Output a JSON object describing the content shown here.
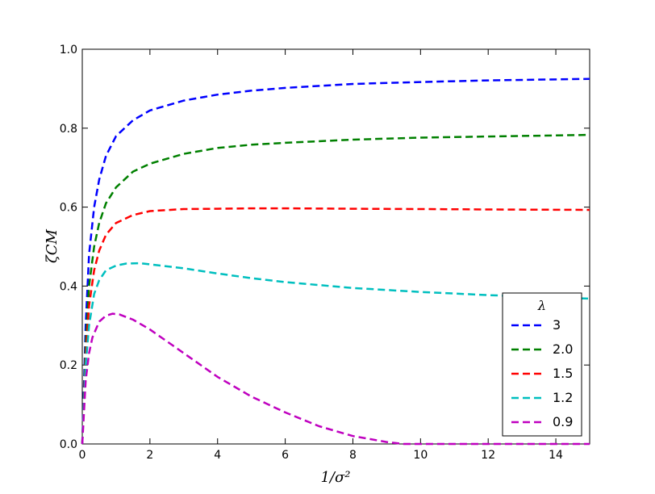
{
  "chart_data": {
    "type": "line",
    "xlabel": "1/σ²",
    "ylabel": "ζCM",
    "xlim": [
      0,
      15
    ],
    "ylim": [
      0,
      1.0
    ],
    "x_ticks": [
      "0",
      "2",
      "4",
      "6",
      "8",
      "10",
      "12",
      "14"
    ],
    "y_ticks": [
      "0.0",
      "0.2",
      "0.4",
      "0.6",
      "0.8",
      "1.0"
    ],
    "grid": false,
    "legend": {
      "title": "λ",
      "placement": "lower-right"
    },
    "series": [
      {
        "name": "3",
        "color": "#0000ff",
        "x": [
          0,
          0.1,
          0.2,
          0.35,
          0.5,
          0.7,
          1.0,
          1.5,
          2,
          3,
          4,
          5,
          6,
          8,
          10,
          12,
          15
        ],
        "y": [
          0.0,
          0.3,
          0.48,
          0.6,
          0.67,
          0.73,
          0.78,
          0.82,
          0.845,
          0.87,
          0.885,
          0.895,
          0.902,
          0.912,
          0.917,
          0.921,
          0.925
        ]
      },
      {
        "name": "2.0",
        "color": "#008000",
        "x": [
          0,
          0.1,
          0.2,
          0.35,
          0.5,
          0.7,
          1.0,
          1.5,
          2,
          3,
          4,
          5,
          6,
          8,
          10,
          12,
          15
        ],
        "y": [
          0.0,
          0.25,
          0.4,
          0.5,
          0.56,
          0.61,
          0.65,
          0.69,
          0.71,
          0.735,
          0.75,
          0.758,
          0.763,
          0.771,
          0.776,
          0.779,
          0.783
        ]
      },
      {
        "name": "1.5",
        "color": "#ff0000",
        "x": [
          0,
          0.1,
          0.2,
          0.35,
          0.5,
          0.7,
          1.0,
          1.5,
          2,
          3,
          4,
          5,
          6,
          8,
          10,
          12,
          15
        ],
        "y": [
          0.0,
          0.22,
          0.35,
          0.44,
          0.49,
          0.53,
          0.56,
          0.58,
          0.59,
          0.595,
          0.596,
          0.597,
          0.597,
          0.596,
          0.595,
          0.594,
          0.593
        ]
      },
      {
        "name": "1.2",
        "color": "#00bfbf",
        "x": [
          0,
          0.1,
          0.2,
          0.35,
          0.5,
          0.7,
          1.0,
          1.3,
          1.7,
          2,
          3,
          4,
          5,
          6,
          8,
          10,
          12,
          15
        ],
        "y": [
          0.0,
          0.2,
          0.3,
          0.38,
          0.415,
          0.44,
          0.452,
          0.457,
          0.458,
          0.455,
          0.445,
          0.432,
          0.42,
          0.41,
          0.395,
          0.385,
          0.377,
          0.368
        ]
      },
      {
        "name": "0.9",
        "color": "#bf00bf",
        "x": [
          0,
          0.1,
          0.2,
          0.3,
          0.5,
          0.7,
          0.9,
          1.1,
          1.5,
          2,
          3,
          4,
          5,
          6,
          7,
          8,
          9,
          9.5,
          10,
          12,
          15
        ],
        "y": [
          0.0,
          0.16,
          0.23,
          0.27,
          0.31,
          0.325,
          0.33,
          0.328,
          0.315,
          0.29,
          0.23,
          0.17,
          0.12,
          0.08,
          0.045,
          0.02,
          0.005,
          0.0,
          0.0,
          0.0,
          0.0
        ]
      }
    ]
  }
}
